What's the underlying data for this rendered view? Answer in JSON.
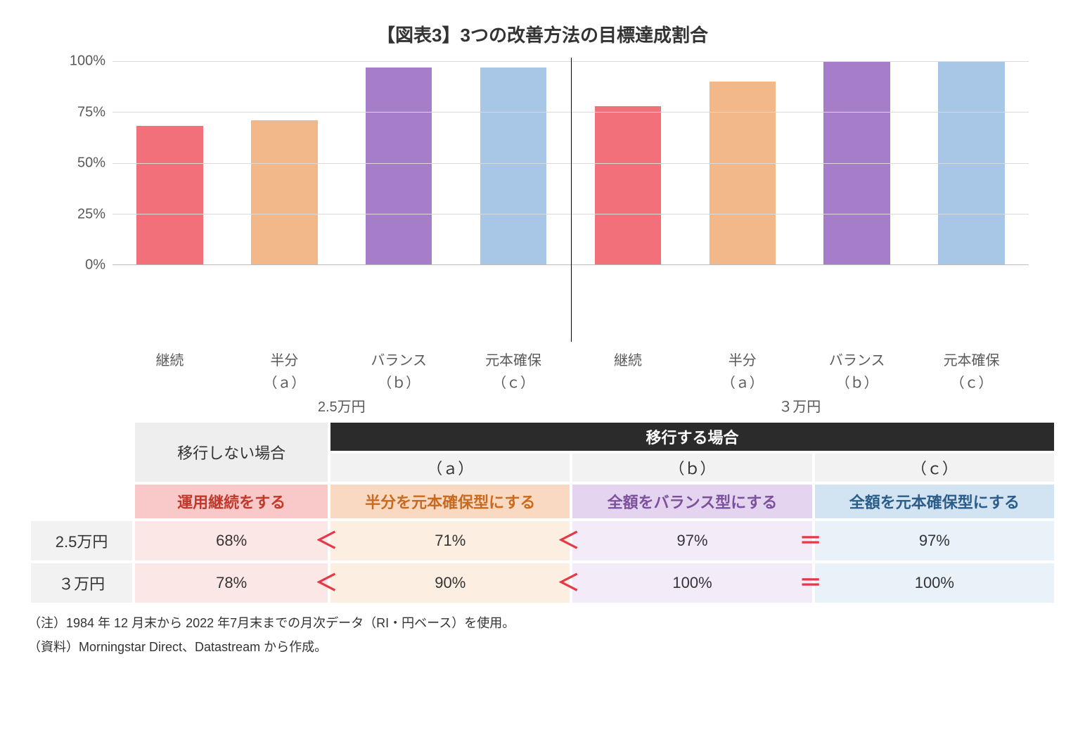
{
  "title": "【図表3】3つの改善方法の目標達成割合",
  "chart": {
    "type": "bar",
    "ylim": [
      0,
      100
    ],
    "ytick_step": 25,
    "ytick_suffix": "%",
    "grid_color": "#d9d9d9",
    "axis_color": "#bfbfbf",
    "label_color": "#595959",
    "label_fontsize": 20,
    "background_color": "#ffffff",
    "groups": [
      "2.5万円",
      "３万円"
    ],
    "categories": [
      {
        "line1": "継続",
        "line2": ""
      },
      {
        "line1": "半分",
        "line2": "（ａ）"
      },
      {
        "line1": "バランス",
        "line2": "（ｂ）"
      },
      {
        "line1": "元本確保",
        "line2": "（ｃ）"
      }
    ],
    "bars": [
      {
        "value": 68,
        "color": "#f27079"
      },
      {
        "value": 71,
        "color": "#f2b88a"
      },
      {
        "value": 97,
        "color": "#a67dc8"
      },
      {
        "value": 97,
        "color": "#a8c6e5"
      },
      {
        "value": 78,
        "color": "#f27079"
      },
      {
        "value": 90,
        "color": "#f2b88a"
      },
      {
        "value": 100,
        "color": "#a67dc8"
      },
      {
        "value": 100,
        "color": "#a8c6e5"
      }
    ],
    "vert_separator_after_index": 4
  },
  "table": {
    "corner_blank": true,
    "header_no_migrate": "移行しない場合",
    "header_migrate": "移行する場合",
    "sub_headers": [
      "（ａ）",
      "（ｂ）",
      "（ｃ）"
    ],
    "methods": [
      {
        "label": "運用継続をする",
        "bg": "#f9c8c8",
        "text": "#c0392b"
      },
      {
        "label": "半分を元本確保型にする",
        "bg": "#fad9c2",
        "text": "#c96a1e"
      },
      {
        "label": "全額をバランス型にする",
        "bg": "#e4d4ef",
        "text": "#7b519d"
      },
      {
        "label": "全額を元本確保型にする",
        "bg": "#d2e3f1",
        "text": "#2b5d8b"
      }
    ],
    "rows": [
      {
        "label": "2.5万円",
        "cells": [
          {
            "value": "68%",
            "bg": "#fce7e7",
            "cmp": "＜"
          },
          {
            "value": "71%",
            "bg": "#fdeee2",
            "cmp": "＜"
          },
          {
            "value": "97%",
            "bg": "#f3ecf8",
            "cmp": "＝"
          },
          {
            "value": "97%",
            "bg": "#eaf2f9",
            "cmp": ""
          }
        ]
      },
      {
        "label": "３万円",
        "cells": [
          {
            "value": "78%",
            "bg": "#fce7e7",
            "cmp": "＜"
          },
          {
            "value": "90%",
            "bg": "#fdeee2",
            "cmp": "＜"
          },
          {
            "value": "100%",
            "bg": "#f3ecf8",
            "cmp": "＝"
          },
          {
            "value": "100%",
            "bg": "#eaf2f9",
            "cmp": ""
          }
        ]
      }
    ],
    "cmp_color": "#e63946",
    "col_widths_pct": [
      10,
      19,
      23.6,
      23.6,
      23.6
    ]
  },
  "notes": [
    "（注）1984 年 12 月末から 2022 年7月末までの月次データ（RI・円ベース）を使用。",
    "（資料）Morningstar Direct、Datastream から作成。"
  ]
}
